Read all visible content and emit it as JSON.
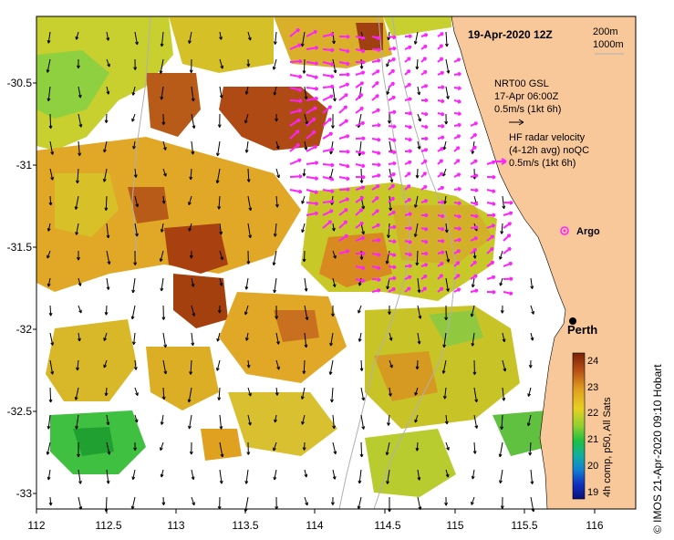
{
  "map": {
    "title": "19-Apr-2020 12Z",
    "depth_legend": [
      "200m",
      "1000m"
    ],
    "current_legend": {
      "source": "NRT00 GSL",
      "time": "17-Apr 06:00Z",
      "scale": "0.5m/s (1kt 6h)"
    },
    "hf_legend": {
      "line1": "HF radar velocity",
      "line2": "(4-12h avg) noQC",
      "scale": "0.5m/s (1kt 6h)"
    },
    "argo_label": "Argo",
    "city_label": "Perth",
    "lon_ticks": [
      "112",
      "112.5",
      "113",
      "113.5",
      "114",
      "114.5",
      "115",
      "115.5",
      "116"
    ],
    "lat_ticks": [
      "-30.5",
      "-31",
      "-31.5",
      "-32",
      "-32.5",
      "-33"
    ],
    "lon_range": [
      112,
      116.3
    ],
    "lat_range": [
      -33.1,
      -30.1
    ],
    "colorbar": {
      "labels": [
        "24",
        "23",
        "22",
        "21",
        "20",
        "19"
      ],
      "caption": "4h comp, p50, All Sats"
    },
    "credit": "© IMOS 21-Apr-2020 09:10 Hobart",
    "colors": {
      "land": "#f8c89a",
      "hf_arrow": "#ff22ff",
      "sst_hot": "#a04010",
      "sst_warm": "#d6a020",
      "sst_mid": "#c8d020",
      "sst_cool": "#30c030"
    }
  }
}
